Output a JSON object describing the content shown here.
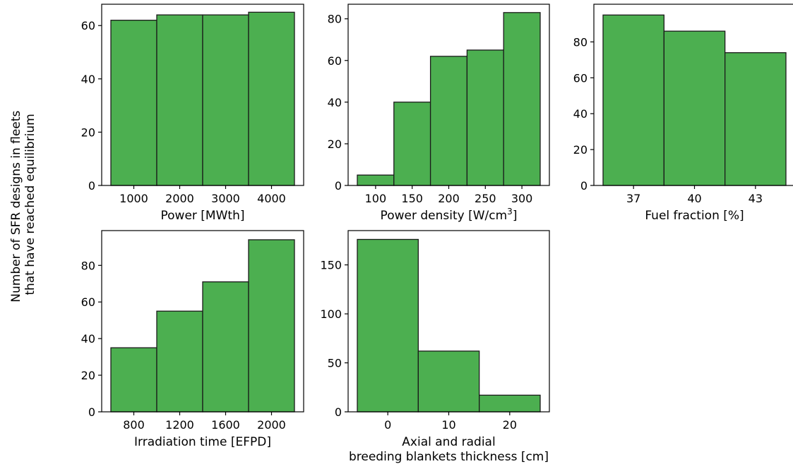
{
  "figure": {
    "ylabel_lines": [
      "Number of SFR designs in fleets",
      "that have reached equilibrium"
    ]
  },
  "style": {
    "bar_color": "#4caf50",
    "edge_color": "#1a1a1a"
  },
  "chart_data": [
    {
      "type": "bar",
      "xlabel": "Power [MWth]",
      "categories": [
        "1000",
        "2000",
        "3000",
        "4000"
      ],
      "values": [
        62,
        64,
        64,
        65
      ],
      "x_ticks": [
        "1000",
        "2000",
        "3000",
        "4000"
      ],
      "y_ticks": [
        "0",
        "20",
        "40",
        "60"
      ],
      "ylim": [
        0,
        68
      ]
    },
    {
      "type": "bar",
      "xlabel": "Power density [W/cm",
      "xlabel_sup": "3",
      "xlabel_suffix": "]",
      "categories": [
        "100",
        "150",
        "200",
        "250",
        "300"
      ],
      "values": [
        5,
        40,
        62,
        65,
        83
      ],
      "x_ticks": [
        "100",
        "150",
        "200",
        "250",
        "300"
      ],
      "y_ticks": [
        "0",
        "20",
        "40",
        "60",
        "80"
      ],
      "ylim": [
        0,
        87
      ]
    },
    {
      "type": "bar",
      "xlabel": "Fuel fraction [%]",
      "categories": [
        "37",
        "40",
        "43"
      ],
      "values": [
        95,
        86,
        74
      ],
      "x_ticks": [
        "37",
        "40",
        "43"
      ],
      "y_ticks": [
        "0",
        "20",
        "40",
        "60",
        "80"
      ],
      "ylim": [
        0,
        101
      ]
    },
    {
      "type": "bar",
      "xlabel": "Irradiation time [EFPD]",
      "categories": [
        "800",
        "1200",
        "1600",
        "2000"
      ],
      "values": [
        35,
        55,
        71,
        94
      ],
      "x_ticks": [
        "800",
        "1200",
        "1600",
        "2000"
      ],
      "y_ticks": [
        "0",
        "20",
        "40",
        "60",
        "80"
      ],
      "ylim": [
        0,
        99
      ]
    },
    {
      "type": "bar",
      "xlabel_lines": [
        "Axial and radial",
        "breeding blankets thickness [cm]"
      ],
      "categories": [
        "0",
        "10",
        "20"
      ],
      "values": [
        176,
        62,
        17
      ],
      "x_ticks": [
        "0",
        "10",
        "20"
      ],
      "y_ticks": [
        "0",
        "50",
        "100",
        "150"
      ],
      "ylim": [
        0,
        185
      ]
    }
  ]
}
